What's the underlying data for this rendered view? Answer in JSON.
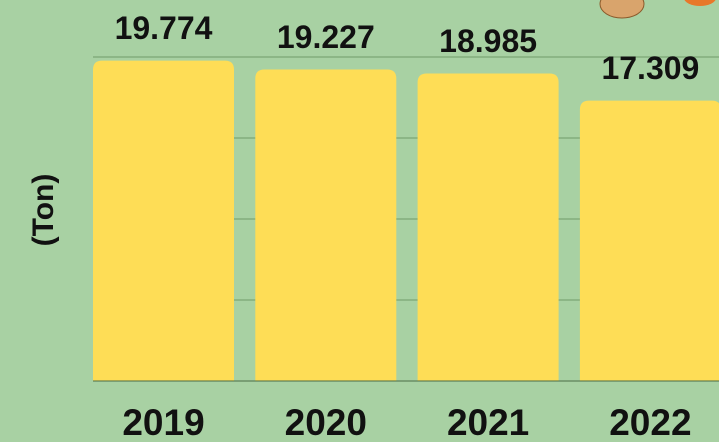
{
  "chart_data": {
    "type": "bar",
    "y_label": "(Ton)",
    "categories": [
      "2019",
      "2020",
      "2021",
      "2022"
    ],
    "values": [
      19.774,
      19.227,
      18.985,
      17.309
    ],
    "color": "#fedd56",
    "ylim": [
      0,
      20
    ],
    "yticks": [
      0,
      5,
      10,
      15,
      20
    ],
    "grid": true
  }
}
